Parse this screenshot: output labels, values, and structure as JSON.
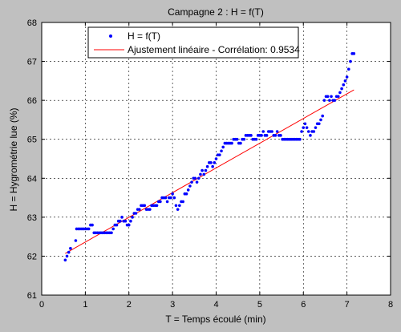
{
  "chart_data": {
    "type": "scatter",
    "title": "Campagne 2 : H = f(T)",
    "xlabel": "T = Temps écoulé (min)",
    "ylabel": "H = Hygrométrie lue (%)",
    "xlim": [
      0,
      8
    ],
    "ylim": [
      61,
      68
    ],
    "xticks": [
      "0",
      "1",
      "2",
      "3",
      "4",
      "5",
      "6",
      "7",
      "8"
    ],
    "yticks": [
      "61",
      "62",
      "63",
      "64",
      "65",
      "66",
      "67",
      "68"
    ],
    "grid": true,
    "legend_position": "top-center",
    "colors": {
      "background": "#c0c0c0",
      "plot": "#ffffff",
      "points": "#0000ff",
      "fit": "#ff0000",
      "axis": "#000000"
    },
    "series": [
      {
        "name": "H = f(T)",
        "marker": "dot",
        "points": [
          [
            0.54,
            61.9
          ],
          [
            0.58,
            62.0
          ],
          [
            0.62,
            62.1
          ],
          [
            0.66,
            62.2
          ],
          [
            0.78,
            62.4
          ],
          [
            0.8,
            62.7
          ],
          [
            0.84,
            62.7
          ],
          [
            0.88,
            62.7
          ],
          [
            0.92,
            62.7
          ],
          [
            0.96,
            62.7
          ],
          [
            1.0,
            62.7
          ],
          [
            1.04,
            62.7
          ],
          [
            1.08,
            62.7
          ],
          [
            1.12,
            62.8
          ],
          [
            1.16,
            62.8
          ],
          [
            1.2,
            62.6
          ],
          [
            1.24,
            62.6
          ],
          [
            1.28,
            62.6
          ],
          [
            1.32,
            62.6
          ],
          [
            1.36,
            62.6
          ],
          [
            1.4,
            62.6
          ],
          [
            1.44,
            62.6
          ],
          [
            1.48,
            62.6
          ],
          [
            1.52,
            62.6
          ],
          [
            1.56,
            62.6
          ],
          [
            1.6,
            62.6
          ],
          [
            1.64,
            62.7
          ],
          [
            1.68,
            62.8
          ],
          [
            1.72,
            62.8
          ],
          [
            1.76,
            62.9
          ],
          [
            1.8,
            62.9
          ],
          [
            1.84,
            63.0
          ],
          [
            1.88,
            62.9
          ],
          [
            1.92,
            62.9
          ],
          [
            1.96,
            62.8
          ],
          [
            2.0,
            62.8
          ],
          [
            2.04,
            62.9
          ],
          [
            2.08,
            63.0
          ],
          [
            2.12,
            63.1
          ],
          [
            2.16,
            63.1
          ],
          [
            2.2,
            63.2
          ],
          [
            2.24,
            63.2
          ],
          [
            2.28,
            63.3
          ],
          [
            2.32,
            63.3
          ],
          [
            2.36,
            63.3
          ],
          [
            2.4,
            63.2
          ],
          [
            2.44,
            63.2
          ],
          [
            2.48,
            63.2
          ],
          [
            2.52,
            63.3
          ],
          [
            2.56,
            63.3
          ],
          [
            2.6,
            63.3
          ],
          [
            2.64,
            63.3
          ],
          [
            2.68,
            63.4
          ],
          [
            2.72,
            63.4
          ],
          [
            2.76,
            63.5
          ],
          [
            2.8,
            63.5
          ],
          [
            2.84,
            63.5
          ],
          [
            2.88,
            63.4
          ],
          [
            2.92,
            63.5
          ],
          [
            2.96,
            63.5
          ],
          [
            3.0,
            63.6
          ],
          [
            3.04,
            63.5
          ],
          [
            3.08,
            63.3
          ],
          [
            3.12,
            63.2
          ],
          [
            3.16,
            63.3
          ],
          [
            3.2,
            63.4
          ],
          [
            3.24,
            63.4
          ],
          [
            3.28,
            63.6
          ],
          [
            3.32,
            63.6
          ],
          [
            3.36,
            63.7
          ],
          [
            3.4,
            63.8
          ],
          [
            3.44,
            63.9
          ],
          [
            3.48,
            64.0
          ],
          [
            3.52,
            64.0
          ],
          [
            3.56,
            63.9
          ],
          [
            3.6,
            64.0
          ],
          [
            3.64,
            64.1
          ],
          [
            3.68,
            64.2
          ],
          [
            3.72,
            64.1
          ],
          [
            3.76,
            64.2
          ],
          [
            3.8,
            64.3
          ],
          [
            3.84,
            64.4
          ],
          [
            3.88,
            64.4
          ],
          [
            3.92,
            64.3
          ],
          [
            3.96,
            64.4
          ],
          [
            4.0,
            64.5
          ],
          [
            4.04,
            64.6
          ],
          [
            4.08,
            64.6
          ],
          [
            4.12,
            64.7
          ],
          [
            4.16,
            64.8
          ],
          [
            4.2,
            64.9
          ],
          [
            4.24,
            64.9
          ],
          [
            4.28,
            64.9
          ],
          [
            4.32,
            64.9
          ],
          [
            4.36,
            64.9
          ],
          [
            4.4,
            65.0
          ],
          [
            4.44,
            65.0
          ],
          [
            4.48,
            65.0
          ],
          [
            4.52,
            64.9
          ],
          [
            4.56,
            64.9
          ],
          [
            4.6,
            65.0
          ],
          [
            4.64,
            65.0
          ],
          [
            4.68,
            65.1
          ],
          [
            4.72,
            65.1
          ],
          [
            4.76,
            65.1
          ],
          [
            4.8,
            65.1
          ],
          [
            4.84,
            65.0
          ],
          [
            4.88,
            65.0
          ],
          [
            4.92,
            65.0
          ],
          [
            4.96,
            65.1
          ],
          [
            5.0,
            65.1
          ],
          [
            5.04,
            65.1
          ],
          [
            5.08,
            65.2
          ],
          [
            5.12,
            65.1
          ],
          [
            5.16,
            65.1
          ],
          [
            5.2,
            65.2
          ],
          [
            5.24,
            65.2
          ],
          [
            5.28,
            65.2
          ],
          [
            5.32,
            65.1
          ],
          [
            5.36,
            65.1
          ],
          [
            5.4,
            65.2
          ],
          [
            5.44,
            65.1
          ],
          [
            5.48,
            65.1
          ],
          [
            5.52,
            65.0
          ],
          [
            5.56,
            65.0
          ],
          [
            5.6,
            65.0
          ],
          [
            5.64,
            65.0
          ],
          [
            5.68,
            65.0
          ],
          [
            5.72,
            65.0
          ],
          [
            5.76,
            65.0
          ],
          [
            5.8,
            65.0
          ],
          [
            5.84,
            65.0
          ],
          [
            5.88,
            65.0
          ],
          [
            5.92,
            65.0
          ],
          [
            5.96,
            65.2
          ],
          [
            6.0,
            65.3
          ],
          [
            6.04,
            65.4
          ],
          [
            6.08,
            65.3
          ],
          [
            6.12,
            65.2
          ],
          [
            6.16,
            65.1
          ],
          [
            6.2,
            65.2
          ],
          [
            6.24,
            65.2
          ],
          [
            6.28,
            65.3
          ],
          [
            6.32,
            65.4
          ],
          [
            6.36,
            65.4
          ],
          [
            6.4,
            65.5
          ],
          [
            6.44,
            65.6
          ],
          [
            6.48,
            66.0
          ],
          [
            6.52,
            66.1
          ],
          [
            6.56,
            66.1
          ],
          [
            6.6,
            66.0
          ],
          [
            6.64,
            66.1
          ],
          [
            6.68,
            66.0
          ],
          [
            6.72,
            66.0
          ],
          [
            6.76,
            66.1
          ],
          [
            6.8,
            66.1
          ],
          [
            6.84,
            66.2
          ],
          [
            6.88,
            66.3
          ],
          [
            6.92,
            66.4
          ],
          [
            6.96,
            66.5
          ],
          [
            7.0,
            66.6
          ],
          [
            7.04,
            66.8
          ],
          [
            7.08,
            67.0
          ],
          [
            7.12,
            67.2
          ],
          [
            7.16,
            67.2
          ]
        ]
      },
      {
        "name": "Ajustement linéaire - Corrélation: 0.9534",
        "type": "line",
        "x": [
          0.54,
          7.16
        ],
        "y": [
          62.07,
          66.27
        ]
      }
    ]
  }
}
